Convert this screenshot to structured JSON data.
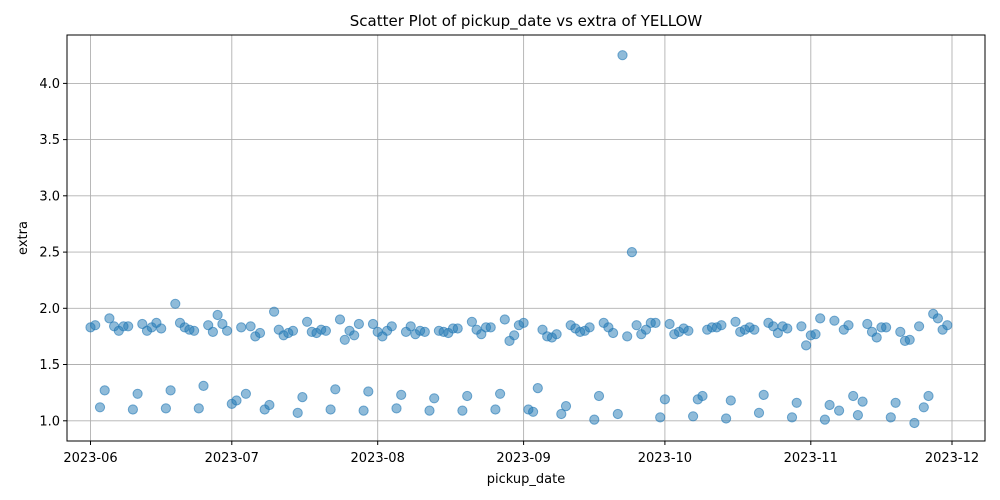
{
  "chart_data": {
    "type": "scatter",
    "title": "Scatter Plot of pickup_date vs extra of YELLOW",
    "xlabel": "pickup_date",
    "ylabel": "extra",
    "x_is_date": true,
    "xlim": [
      "2023-05-27",
      "2023-12-08"
    ],
    "ylim": [
      0.82,
      4.43
    ],
    "grid": true,
    "color": "#1f77b4",
    "x_ticks": [
      "2023-06-01",
      "2023-07-01",
      "2023-08-01",
      "2023-09-01",
      "2023-10-01",
      "2023-11-01",
      "2023-12-01"
    ],
    "x_tick_labels": [
      "2023-06",
      "2023-07",
      "2023-08",
      "2023-09",
      "2023-10",
      "2023-11",
      "2023-12"
    ],
    "y_ticks": [
      1.0,
      1.5,
      2.0,
      2.5,
      3.0,
      3.5,
      4.0
    ],
    "y_tick_labels": [
      "1.0",
      "1.5",
      "2.0",
      "2.5",
      "3.0",
      "3.5",
      "4.0"
    ],
    "points": [
      [
        "2023-06-01",
        1.83
      ],
      [
        "2023-06-02",
        1.85
      ],
      [
        "2023-06-03",
        1.12
      ],
      [
        "2023-06-04",
        1.27
      ],
      [
        "2023-06-05",
        1.91
      ],
      [
        "2023-06-06",
        1.84
      ],
      [
        "2023-06-07",
        1.8
      ],
      [
        "2023-06-08",
        1.84
      ],
      [
        "2023-06-09",
        1.84
      ],
      [
        "2023-06-10",
        1.1
      ],
      [
        "2023-06-11",
        1.24
      ],
      [
        "2023-06-12",
        1.86
      ],
      [
        "2023-06-13",
        1.8
      ],
      [
        "2023-06-14",
        1.83
      ],
      [
        "2023-06-15",
        1.87
      ],
      [
        "2023-06-16",
        1.82
      ],
      [
        "2023-06-17",
        1.11
      ],
      [
        "2023-06-18",
        1.27
      ],
      [
        "2023-06-19",
        2.04
      ],
      [
        "2023-06-20",
        1.87
      ],
      [
        "2023-06-21",
        1.83
      ],
      [
        "2023-06-22",
        1.81
      ],
      [
        "2023-06-23",
        1.8
      ],
      [
        "2023-06-24",
        1.11
      ],
      [
        "2023-06-25",
        1.31
      ],
      [
        "2023-06-26",
        1.85
      ],
      [
        "2023-06-27",
        1.79
      ],
      [
        "2023-06-28",
        1.94
      ],
      [
        "2023-06-29",
        1.86
      ],
      [
        "2023-06-30",
        1.8
      ],
      [
        "2023-07-01",
        1.15
      ],
      [
        "2023-07-02",
        1.18
      ],
      [
        "2023-07-03",
        1.83
      ],
      [
        "2023-07-04",
        1.24
      ],
      [
        "2023-07-05",
        1.84
      ],
      [
        "2023-07-06",
        1.75
      ],
      [
        "2023-07-07",
        1.78
      ],
      [
        "2023-07-08",
        1.1
      ],
      [
        "2023-07-09",
        1.14
      ],
      [
        "2023-07-10",
        1.97
      ],
      [
        "2023-07-11",
        1.81
      ],
      [
        "2023-07-12",
        1.76
      ],
      [
        "2023-07-13",
        1.78
      ],
      [
        "2023-07-14",
        1.8
      ],
      [
        "2023-07-15",
        1.07
      ],
      [
        "2023-07-16",
        1.21
      ],
      [
        "2023-07-17",
        1.88
      ],
      [
        "2023-07-18",
        1.79
      ],
      [
        "2023-07-19",
        1.78
      ],
      [
        "2023-07-20",
        1.81
      ],
      [
        "2023-07-21",
        1.8
      ],
      [
        "2023-07-22",
        1.1
      ],
      [
        "2023-07-23",
        1.28
      ],
      [
        "2023-07-24",
        1.9
      ],
      [
        "2023-07-25",
        1.72
      ],
      [
        "2023-07-26",
        1.8
      ],
      [
        "2023-07-27",
        1.76
      ],
      [
        "2023-07-28",
        1.86
      ],
      [
        "2023-07-29",
        1.09
      ],
      [
        "2023-07-30",
        1.26
      ],
      [
        "2023-07-31",
        1.86
      ],
      [
        "2023-08-01",
        1.79
      ],
      [
        "2023-08-02",
        1.75
      ],
      [
        "2023-08-03",
        1.8
      ],
      [
        "2023-08-04",
        1.84
      ],
      [
        "2023-08-05",
        1.11
      ],
      [
        "2023-08-06",
        1.23
      ],
      [
        "2023-08-07",
        1.79
      ],
      [
        "2023-08-08",
        1.84
      ],
      [
        "2023-08-09",
        1.77
      ],
      [
        "2023-08-10",
        1.8
      ],
      [
        "2023-08-11",
        1.79
      ],
      [
        "2023-08-12",
        1.09
      ],
      [
        "2023-08-13",
        1.2
      ],
      [
        "2023-08-14",
        1.8
      ],
      [
        "2023-08-15",
        1.79
      ],
      [
        "2023-08-16",
        1.78
      ],
      [
        "2023-08-17",
        1.82
      ],
      [
        "2023-08-18",
        1.82
      ],
      [
        "2023-08-19",
        1.09
      ],
      [
        "2023-08-20",
        1.22
      ],
      [
        "2023-08-21",
        1.88
      ],
      [
        "2023-08-22",
        1.81
      ],
      [
        "2023-08-23",
        1.77
      ],
      [
        "2023-08-24",
        1.83
      ],
      [
        "2023-08-25",
        1.83
      ],
      [
        "2023-08-26",
        1.1
      ],
      [
        "2023-08-27",
        1.24
      ],
      [
        "2023-08-28",
        1.9
      ],
      [
        "2023-08-29",
        1.71
      ],
      [
        "2023-08-30",
        1.76
      ],
      [
        "2023-08-31",
        1.85
      ],
      [
        "2023-09-01",
        1.87
      ],
      [
        "2023-09-02",
        1.1
      ],
      [
        "2023-09-03",
        1.08
      ],
      [
        "2023-09-04",
        1.29
      ],
      [
        "2023-09-05",
        1.81
      ],
      [
        "2023-09-06",
        1.75
      ],
      [
        "2023-09-07",
        1.74
      ],
      [
        "2023-09-08",
        1.77
      ],
      [
        "2023-09-09",
        1.06
      ],
      [
        "2023-09-10",
        1.13
      ],
      [
        "2023-09-11",
        1.85
      ],
      [
        "2023-09-12",
        1.82
      ],
      [
        "2023-09-13",
        1.79
      ],
      [
        "2023-09-14",
        1.8
      ],
      [
        "2023-09-15",
        1.83
      ],
      [
        "2023-09-16",
        1.01
      ],
      [
        "2023-09-17",
        1.22
      ],
      [
        "2023-09-18",
        1.87
      ],
      [
        "2023-09-19",
        1.83
      ],
      [
        "2023-09-20",
        1.78
      ],
      [
        "2023-09-21",
        1.06
      ],
      [
        "2023-09-22",
        4.25
      ],
      [
        "2023-09-23",
        1.75
      ],
      [
        "2023-09-24",
        2.5
      ],
      [
        "2023-09-25",
        1.85
      ],
      [
        "2023-09-26",
        1.77
      ],
      [
        "2023-09-27",
        1.81
      ],
      [
        "2023-09-28",
        1.87
      ],
      [
        "2023-09-29",
        1.87
      ],
      [
        "2023-09-30",
        1.03
      ],
      [
        "2023-10-01",
        1.19
      ],
      [
        "2023-10-02",
        1.86
      ],
      [
        "2023-10-03",
        1.77
      ],
      [
        "2023-10-04",
        1.79
      ],
      [
        "2023-10-05",
        1.82
      ],
      [
        "2023-10-06",
        1.8
      ],
      [
        "2023-10-07",
        1.04
      ],
      [
        "2023-10-08",
        1.19
      ],
      [
        "2023-10-09",
        1.22
      ],
      [
        "2023-10-10",
        1.81
      ],
      [
        "2023-10-11",
        1.83
      ],
      [
        "2023-10-12",
        1.83
      ],
      [
        "2023-10-13",
        1.85
      ],
      [
        "2023-10-14",
        1.02
      ],
      [
        "2023-10-15",
        1.18
      ],
      [
        "2023-10-16",
        1.88
      ],
      [
        "2023-10-17",
        1.79
      ],
      [
        "2023-10-18",
        1.81
      ],
      [
        "2023-10-19",
        1.83
      ],
      [
        "2023-10-20",
        1.81
      ],
      [
        "2023-10-21",
        1.07
      ],
      [
        "2023-10-22",
        1.23
      ],
      [
        "2023-10-23",
        1.87
      ],
      [
        "2023-10-24",
        1.84
      ],
      [
        "2023-10-25",
        1.78
      ],
      [
        "2023-10-26",
        1.84
      ],
      [
        "2023-10-27",
        1.82
      ],
      [
        "2023-10-28",
        1.03
      ],
      [
        "2023-10-29",
        1.16
      ],
      [
        "2023-10-30",
        1.84
      ],
      [
        "2023-10-31",
        1.67
      ],
      [
        "2023-11-01",
        1.76
      ],
      [
        "2023-11-02",
        1.77
      ],
      [
        "2023-11-03",
        1.91
      ],
      [
        "2023-11-04",
        1.01
      ],
      [
        "2023-11-05",
        1.14
      ],
      [
        "2023-11-06",
        1.89
      ],
      [
        "2023-11-07",
        1.09
      ],
      [
        "2023-11-08",
        1.81
      ],
      [
        "2023-11-09",
        1.85
      ],
      [
        "2023-11-10",
        1.22
      ],
      [
        "2023-11-11",
        1.05
      ],
      [
        "2023-11-12",
        1.17
      ],
      [
        "2023-11-13",
        1.86
      ],
      [
        "2023-11-14",
        1.79
      ],
      [
        "2023-11-15",
        1.74
      ],
      [
        "2023-11-16",
        1.83
      ],
      [
        "2023-11-17",
        1.83
      ],
      [
        "2023-11-18",
        1.03
      ],
      [
        "2023-11-19",
        1.16
      ],
      [
        "2023-11-20",
        1.79
      ],
      [
        "2023-11-21",
        1.71
      ],
      [
        "2023-11-22",
        1.72
      ],
      [
        "2023-11-23",
        0.98
      ],
      [
        "2023-11-24",
        1.84
      ],
      [
        "2023-11-25",
        1.12
      ],
      [
        "2023-11-26",
        1.22
      ],
      [
        "2023-11-27",
        1.95
      ],
      [
        "2023-11-28",
        1.91
      ],
      [
        "2023-11-29",
        1.81
      ],
      [
        "2023-11-30",
        1.85
      ]
    ]
  }
}
